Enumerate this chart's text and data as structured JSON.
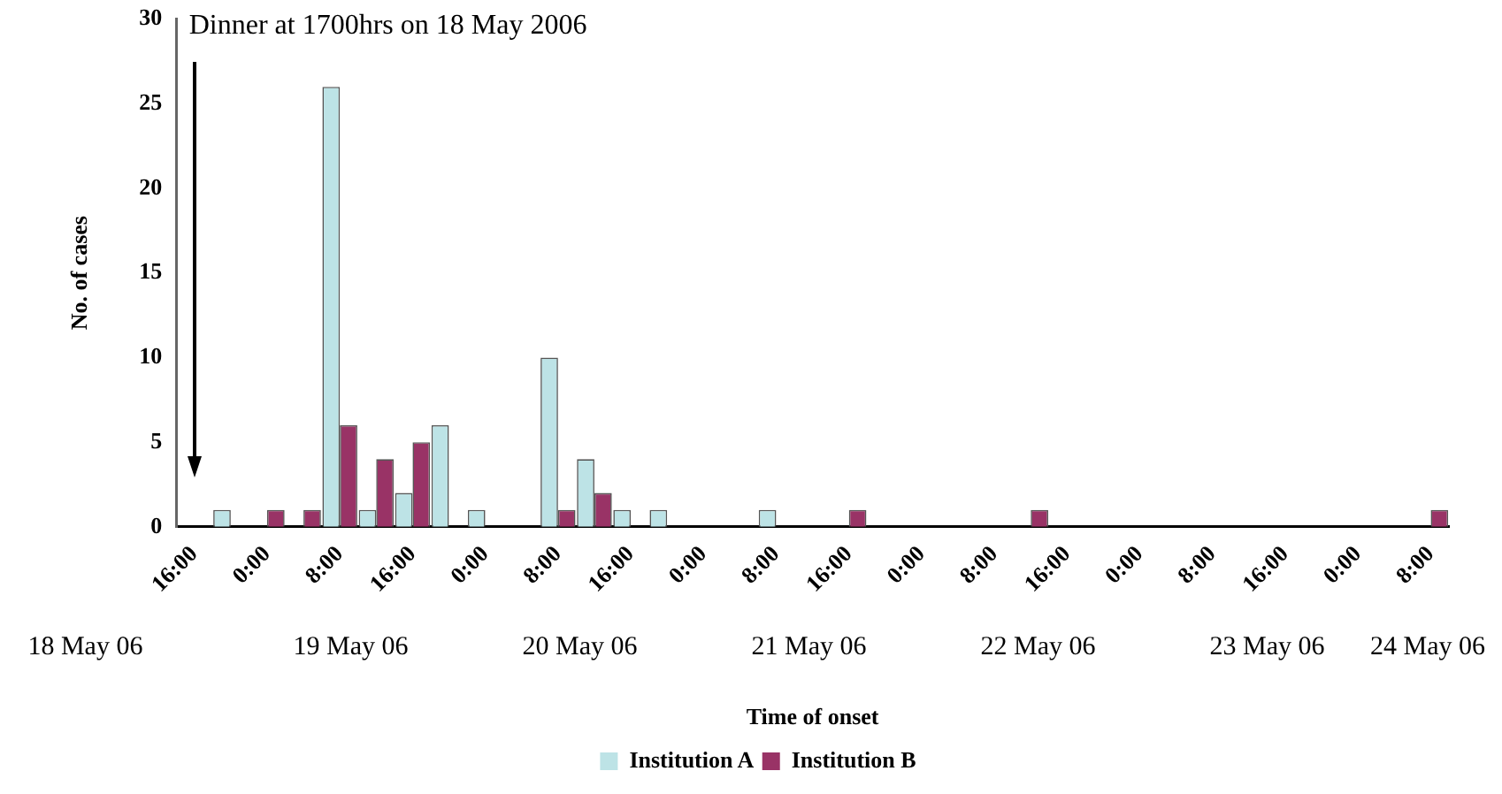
{
  "chart_data": {
    "type": "bar",
    "xlabel": "Time of onset",
    "ylabel": "No. of cases",
    "categories": [
      "16:00",
      null,
      "0:00",
      null,
      "8:00",
      null,
      "16:00",
      null,
      "0:00",
      null,
      "8:00",
      null,
      "16:00",
      null,
      "0:00",
      null,
      "8:00",
      null,
      "16:00",
      null,
      "0:00",
      null,
      "8:00",
      null,
      "16:00",
      null,
      "0:00",
      null,
      "8:00",
      null,
      "16:00",
      null,
      "0:00",
      null,
      "8:00"
    ],
    "series": [
      {
        "name": "Institution A",
        "color": "#bde3e6",
        "values": [
          0,
          1,
          0,
          0,
          26,
          1,
          2,
          6,
          1,
          0,
          10,
          4,
          1,
          1,
          0,
          0,
          1,
          0,
          0,
          0,
          0,
          0,
          0,
          0,
          0,
          0,
          0,
          0,
          0,
          0,
          0,
          0,
          0,
          0,
          0
        ]
      },
      {
        "name": "Institution B",
        "color": "#993366",
        "values": [
          0,
          0,
          1,
          1,
          6,
          4,
          5,
          0,
          0,
          0,
          1,
          2,
          0,
          0,
          0,
          0,
          0,
          0,
          1,
          0,
          0,
          0,
          0,
          1,
          0,
          0,
          0,
          0,
          0,
          0,
          0,
          0,
          0,
          0,
          1
        ]
      }
    ],
    "ylim": [
      0,
      30
    ],
    "yticks": [
      0,
      5,
      10,
      15,
      20,
      25,
      30
    ],
    "legend": "bottom",
    "annotations": [
      "Dinner at 1700hrs on 18 May 2006",
      "18 May 06",
      "19 May 06",
      "20 May 06",
      "21 May 06",
      "22 May 06",
      "23 May 06",
      "24 May 06"
    ]
  }
}
